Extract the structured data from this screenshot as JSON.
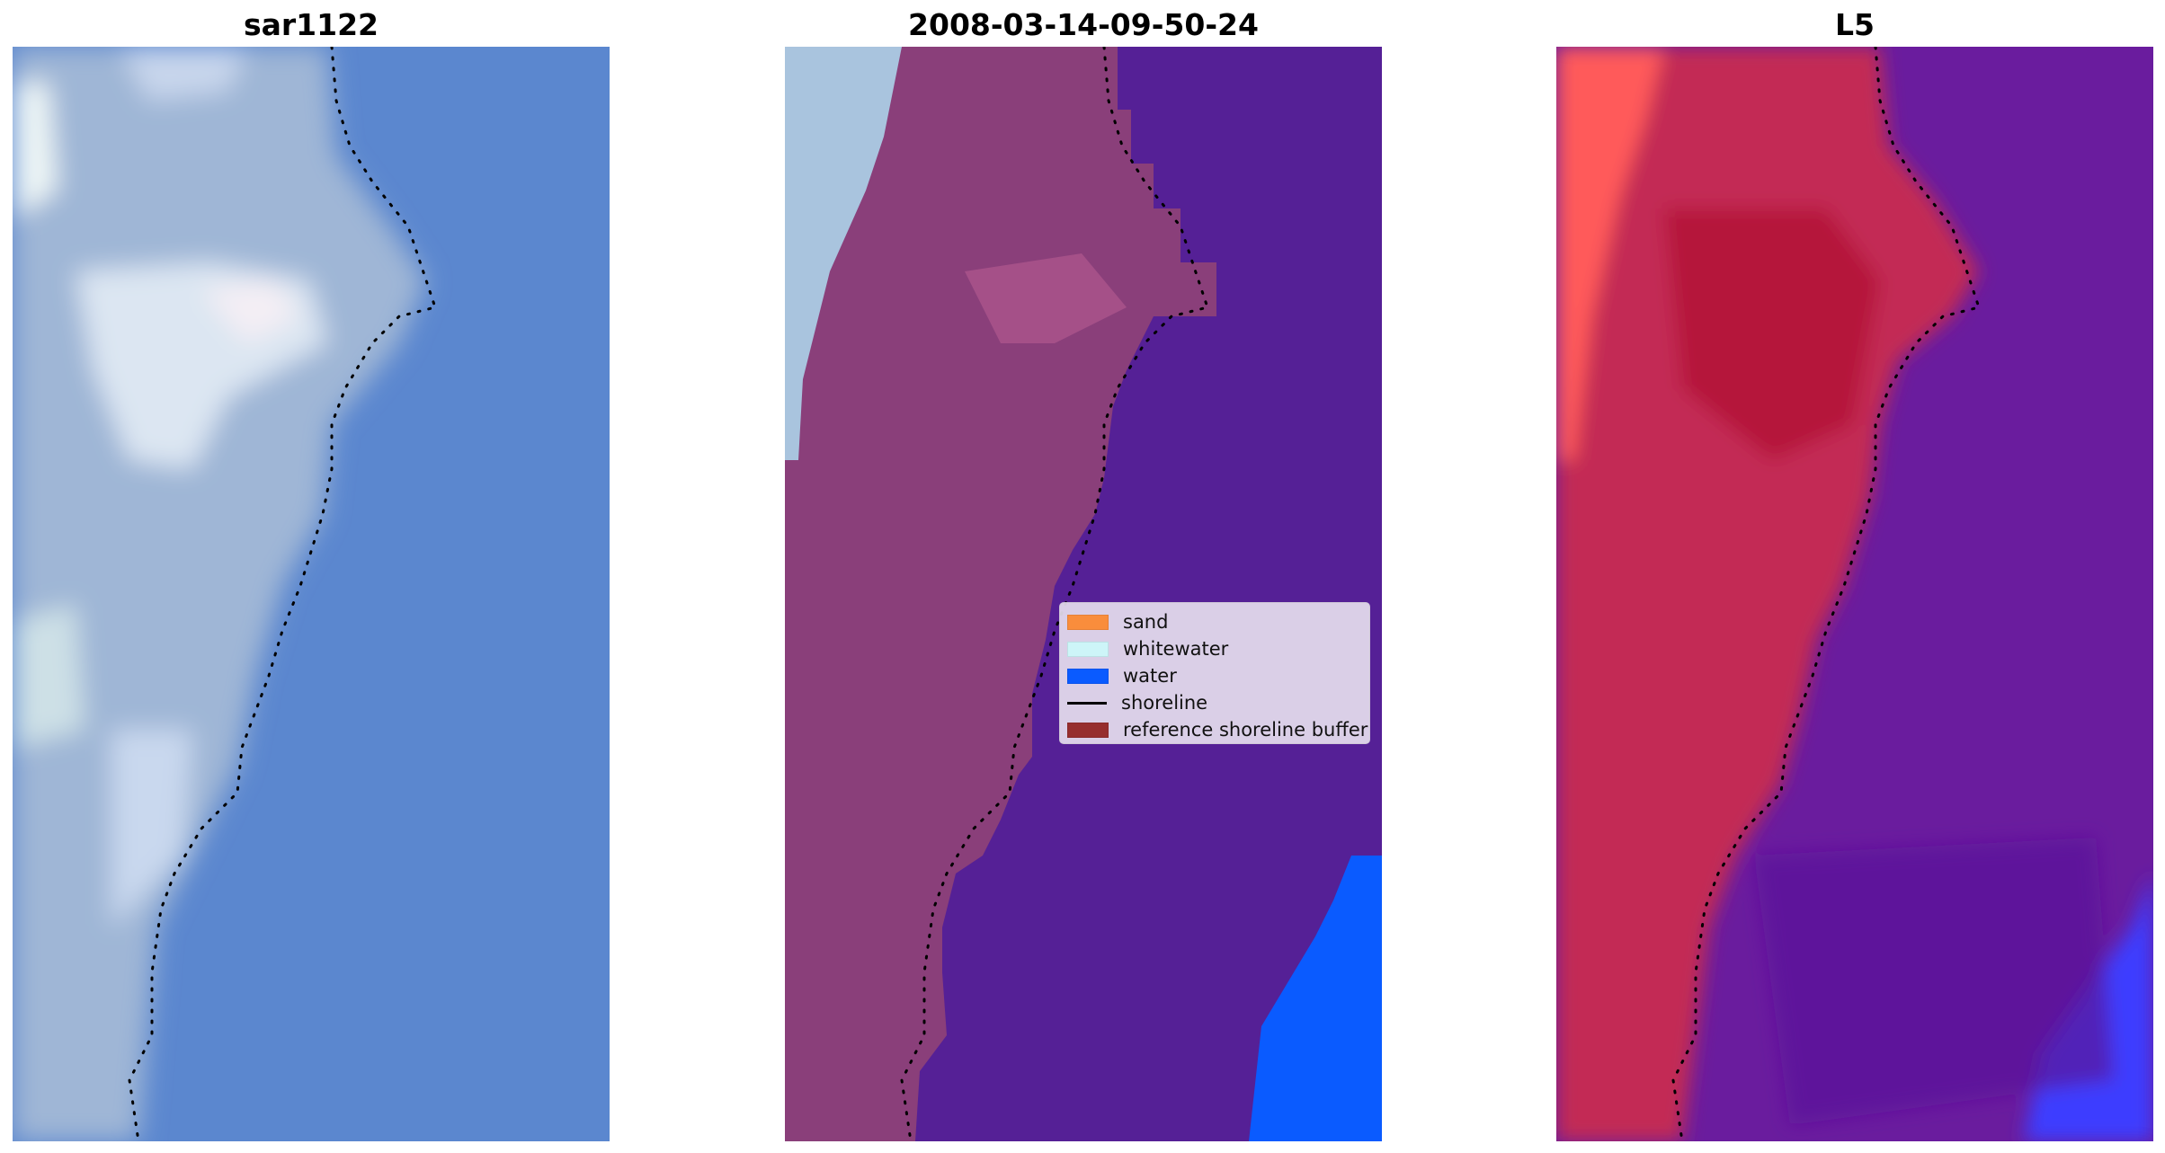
{
  "panels": [
    {
      "title": "sar1122",
      "kind": "rgb"
    },
    {
      "title": "2008-03-14-09-50-24",
      "kind": "classified"
    },
    {
      "title": "L5",
      "kind": "index"
    }
  ],
  "legend": {
    "items": [
      {
        "label": "sand",
        "color": "#f98d3c",
        "shape": "patch"
      },
      {
        "label": "whitewater",
        "color": "#cdf5f8",
        "shape": "patch"
      },
      {
        "label": "water",
        "color": "#0a5bff",
        "shape": "patch"
      },
      {
        "label": "shoreline",
        "color": "#000000",
        "shape": "line"
      },
      {
        "label": "reference shoreline buffer",
        "color": "#962e2e",
        "shape": "patch"
      }
    ]
  },
  "colors": {
    "rgb_water": "#5b87cf",
    "rgb_land": "#9fb6d6",
    "rgb_foam": "#e6edf6",
    "classified_buffer": "#8a3f7a",
    "classified_water": "#552096",
    "classified_water_blue": "#0a5bff",
    "classified_whitewater": "#a9c4de",
    "index_land": "#c32a55",
    "index_water": "#6a1c9e",
    "index_red": "#ff5a5a",
    "index_blue": "#3c3cff",
    "shoreline": "#000000"
  }
}
